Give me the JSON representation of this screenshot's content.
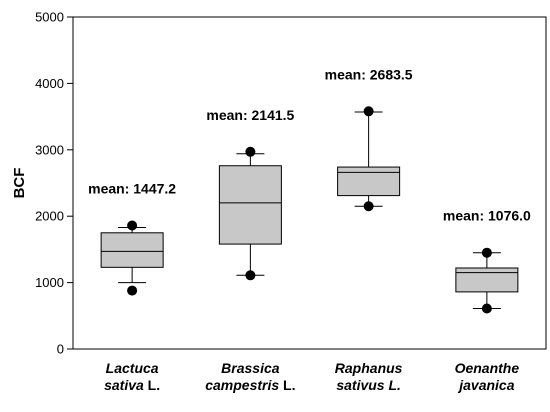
{
  "chart_data": {
    "type": "boxplot",
    "title": "",
    "xlabel": "",
    "ylabel": "BCF",
    "ylim": [
      0,
      5000
    ],
    "yticks": [
      0,
      1000,
      2000,
      3000,
      4000,
      5000
    ],
    "grid": false,
    "legend": "none",
    "categories": [
      {
        "line1": [
          {
            "t": "Lactuca",
            "i": true
          }
        ],
        "line2": [
          {
            "t": "sativa",
            "i": true
          },
          {
            "t": " L.",
            "i": false
          }
        ]
      },
      {
        "line1": [
          {
            "t": "Brassica",
            "i": true
          }
        ],
        "line2": [
          {
            "t": "campestris",
            "i": true
          },
          {
            "t": " L.",
            "i": false
          }
        ]
      },
      {
        "line1": [
          {
            "t": "Raphanus",
            "i": true
          }
        ],
        "line2": [
          {
            "t": "sativus L.",
            "i": true
          }
        ]
      },
      {
        "line1": [
          {
            "t": "Oenanthe",
            "i": true
          }
        ],
        "line2": [
          {
            "t": "javanica",
            "i": true
          }
        ]
      }
    ],
    "boxes": [
      {
        "whisker_low": 1000,
        "q1": 1230,
        "median": 1470,
        "q3": 1750,
        "whisker_high": 1830,
        "outliers": [
          880,
          1860
        ],
        "mean_label": "mean: 1447.2"
      },
      {
        "whisker_low": 1110,
        "q1": 1580,
        "median": 2200,
        "q3": 2760,
        "whisker_high": 2940,
        "outliers": [
          1110,
          2970
        ],
        "mean_label": "mean: 2141.5"
      },
      {
        "whisker_low": 2150,
        "q1": 2310,
        "median": 2660,
        "q3": 2740,
        "whisker_high": 3570,
        "outliers": [
          2150,
          3580
        ],
        "mean_label": "mean: 2683.5"
      },
      {
        "whisker_low": 610,
        "q1": 860,
        "median": 1150,
        "q3": 1220,
        "whisker_high": 1450,
        "outliers": [
          610,
          1450
        ],
        "mean_label": "mean: 1076.0"
      }
    ],
    "colors": {
      "box_fill": "#c8c8c8",
      "stroke": "#000000",
      "marker": "#000000"
    }
  }
}
